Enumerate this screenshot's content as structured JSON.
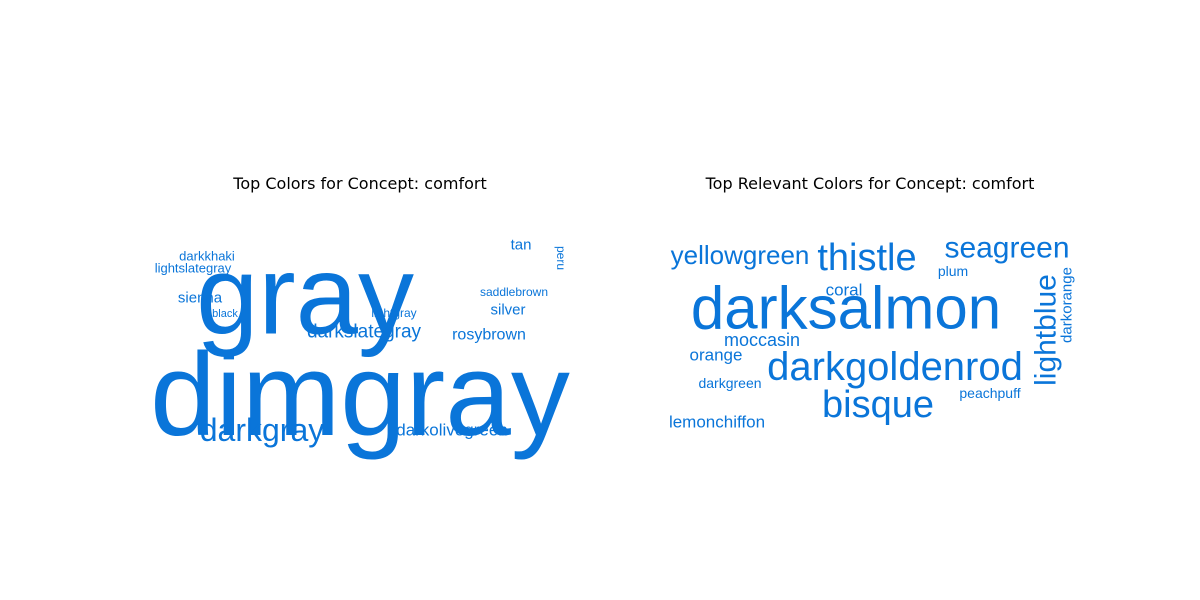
{
  "colors": {
    "word": "#0a75d9"
  },
  "chart_data": [
    {
      "type": "wordcloud",
      "title": "Top Colors for Concept: comfort",
      "words": [
        {
          "text": "dimgray",
          "weight": 1.0
        },
        {
          "text": "gray",
          "weight": 0.95
        },
        {
          "text": "darkgray",
          "weight": 0.33
        },
        {
          "text": "darkslategray",
          "weight": 0.19
        },
        {
          "text": "darkolivegreen",
          "weight": 0.18
        },
        {
          "text": "rosybrown",
          "weight": 0.17
        },
        {
          "text": "sienna",
          "weight": 0.15
        },
        {
          "text": "silver",
          "weight": 0.15
        },
        {
          "text": "tan",
          "weight": 0.14
        },
        {
          "text": "darkkhaki",
          "weight": 0.13
        },
        {
          "text": "lightslategray",
          "weight": 0.13
        },
        {
          "text": "saddlebrown",
          "weight": 0.12
        },
        {
          "text": "peru",
          "weight": 0.11
        },
        {
          "text": "lightgray",
          "weight": 0.11
        },
        {
          "text": "black",
          "weight": 0.1
        }
      ]
    },
    {
      "type": "wordcloud",
      "title": "Top Relevant Colors for Concept: comfort",
      "words": [
        {
          "text": "darksalmon",
          "weight": 1.0
        },
        {
          "text": "darkgoldenrod",
          "weight": 0.72
        },
        {
          "text": "thistle",
          "weight": 0.72
        },
        {
          "text": "bisque",
          "weight": 0.69
        },
        {
          "text": "lightblue",
          "weight": 0.6
        },
        {
          "text": "seagreen",
          "weight": 0.58
        },
        {
          "text": "yellowgreen",
          "weight": 0.49
        },
        {
          "text": "moccasin",
          "weight": 0.36
        },
        {
          "text": "coral",
          "weight": 0.35
        },
        {
          "text": "orange",
          "weight": 0.34
        },
        {
          "text": "lemonchiffon",
          "weight": 0.34
        },
        {
          "text": "darkorange",
          "weight": 0.31
        },
        {
          "text": "darkgreen",
          "weight": 0.29
        },
        {
          "text": "peachpuff",
          "weight": 0.29
        },
        {
          "text": "plum",
          "weight": 0.27
        }
      ]
    }
  ]
}
